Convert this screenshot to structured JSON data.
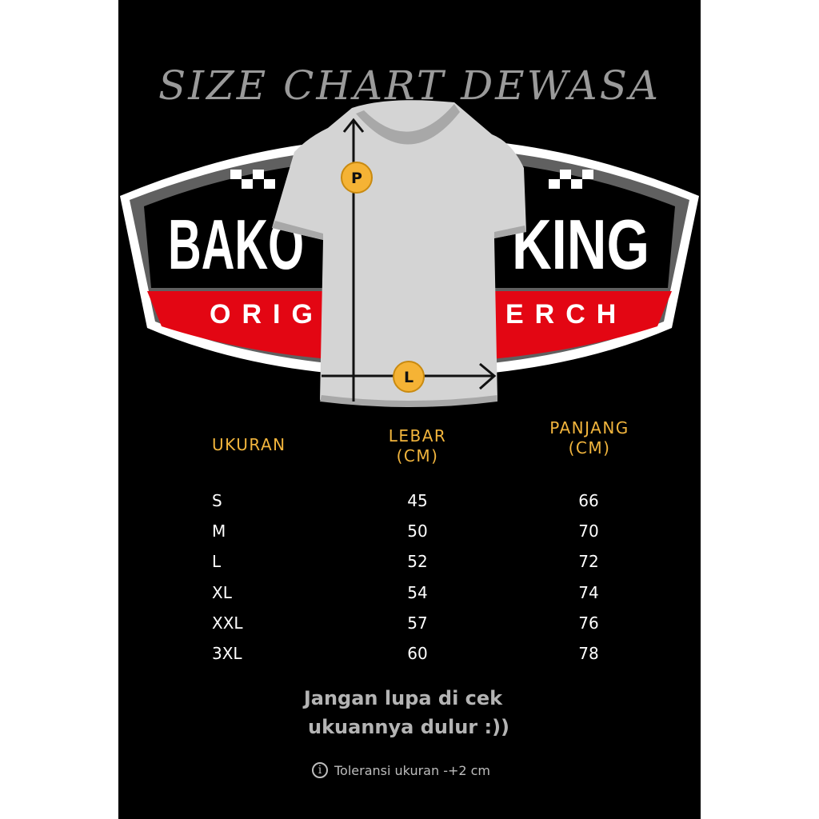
{
  "title": "SIZE CHART DEWASA",
  "logo": {
    "line1_left": "BAKO",
    "line1_right": "KING",
    "line2_left": "ORIG",
    "line2_right": "ERCH"
  },
  "diagram": {
    "length_marker": "P",
    "width_marker": "L"
  },
  "colors": {
    "background": "#000000",
    "header": "#f2b53d",
    "badge_red": "#e30613",
    "shirt": "#d4d4d4",
    "marker": "#f5b335"
  },
  "table": {
    "headers": {
      "size": "UKURAN",
      "width_line1": "LEBAR",
      "width_line2": "(CM)",
      "length_line1": "PANJANG",
      "length_line2": "(CM)"
    },
    "rows": [
      {
        "size": "S",
        "lebar": "45",
        "panjang": "66"
      },
      {
        "size": "M",
        "lebar": "50",
        "panjang": "70"
      },
      {
        "size": "L",
        "lebar": "52",
        "panjang": "72"
      },
      {
        "size": "XL",
        "lebar": "54",
        "panjang": "74"
      },
      {
        "size": "XXL",
        "lebar": "57",
        "panjang": "76"
      },
      {
        "size": "3XL",
        "lebar": "60",
        "panjang": "78"
      }
    ]
  },
  "note": {
    "line1": "Jangan lupa di cek",
    "line2": "ukuannya dulur :))"
  },
  "tolerance": {
    "icon": "info-icon",
    "text": "Toleransi ukuran -+2 cm"
  }
}
